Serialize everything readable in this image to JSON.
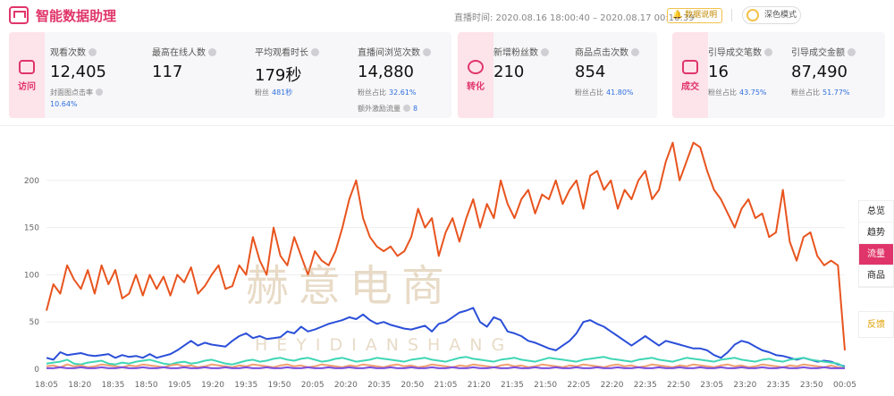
{
  "app": {
    "title": "智能数据助理"
  },
  "header": {
    "live_time": "直播时间: 2020.08.16 18:00:40 – 2020.08.17 00:10:39",
    "help_label": "数据说明",
    "dark_mode_label": "深色模式"
  },
  "panels": {
    "visit": {
      "category": "访问",
      "metrics": [
        {
          "label": "观看次数",
          "value": "12,405",
          "sub_label": "封面图点击率",
          "sub_value": "10.64%"
        },
        {
          "label": "最高在线人数",
          "value": "117"
        },
        {
          "label": "平均观看时长",
          "value": "179秒",
          "sub_label": "粉丝",
          "sub_value": "481秒"
        },
        {
          "label": "直播间浏览次数",
          "value": "14,880",
          "sub_label": "粉丝占比",
          "sub_value": "32.61%",
          "extra_label": "额外激励流量",
          "extra_value": "8"
        }
      ]
    },
    "convert": {
      "category": "转化",
      "metrics": [
        {
          "label": "新增粉丝数",
          "value": "210"
        },
        {
          "label": "商品点击次数",
          "value": "854",
          "sub_label": "粉丝占比",
          "sub_value": "41.80%"
        }
      ]
    },
    "deal": {
      "category": "成交",
      "metrics": [
        {
          "label": "引导成交笔数",
          "value": "16",
          "sub_label": "粉丝占比",
          "sub_value": "43.75%"
        },
        {
          "label": "引导成交金额",
          "value": "87,490",
          "sub_label": "粉丝占比",
          "sub_value": "51.77%"
        }
      ]
    }
  },
  "sidebar": {
    "items": [
      "总览",
      "趋势",
      "流量",
      "商品"
    ],
    "active": "流量",
    "feedback": "反馈"
  },
  "watermark": {
    "text": "赫意电商",
    "sub": "HEYIDIANSHANG"
  },
  "colors": {
    "accent": "#e0356a",
    "orange": "#e8541e",
    "blue": "#2b4fd8",
    "teal": "#3fd6b5",
    "purple": "#7b4fe0",
    "peach": "#f0a070"
  },
  "chart_data": {
    "type": "line",
    "x_ticks": [
      "18:05",
      "18:20",
      "18:35",
      "18:50",
      "19:05",
      "19:20",
      "19:35",
      "19:50",
      "20:05",
      "20:20",
      "20:35",
      "20:50",
      "21:05",
      "21:20",
      "21:35",
      "21:50",
      "22:05",
      "22:20",
      "22:35",
      "22:50",
      "23:05",
      "23:20",
      "23:35",
      "23:50",
      "00:05"
    ],
    "y_ticks": [
      0,
      50,
      100,
      150,
      200
    ],
    "ylim": [
      0,
      250
    ],
    "grid": true,
    "series": [
      {
        "color": "#e8541e",
        "values": [
          62,
          90,
          80,
          110,
          95,
          85,
          105,
          80,
          110,
          90,
          105,
          75,
          80,
          100,
          78,
          100,
          85,
          98,
          78,
          100,
          92,
          108,
          80,
          88,
          100,
          110,
          85,
          88,
          110,
          100,
          140,
          115,
          100,
          150,
          120,
          110,
          140,
          120,
          100,
          125,
          115,
          110,
          125,
          150,
          180,
          200,
          160,
          140,
          130,
          125,
          130,
          120,
          125,
          140,
          170,
          150,
          160,
          120,
          145,
          160,
          135,
          160,
          180,
          150,
          175,
          160,
          200,
          175,
          160,
          180,
          190,
          165,
          185,
          180,
          200,
          175,
          190,
          200,
          170,
          205,
          210,
          190,
          200,
          170,
          190,
          180,
          200,
          210,
          180,
          190,
          220,
          240,
          200,
          220,
          240,
          235,
          210,
          190,
          180,
          165,
          150,
          170,
          180,
          160,
          165,
          140,
          145,
          190,
          135,
          115,
          140,
          145,
          120,
          110,
          115,
          110,
          20
        ]
      },
      {
        "color": "#2b4fd8",
        "values": [
          12,
          10,
          18,
          15,
          16,
          17,
          15,
          14,
          15,
          16,
          12,
          15,
          13,
          14,
          12,
          16,
          12,
          14,
          16,
          20,
          25,
          30,
          25,
          28,
          26,
          25,
          24,
          30,
          35,
          38,
          33,
          35,
          32,
          33,
          34,
          40,
          38,
          45,
          40,
          42,
          45,
          48,
          50,
          52,
          55,
          53,
          58,
          52,
          48,
          50,
          47,
          45,
          43,
          42,
          44,
          46,
          40,
          48,
          50,
          55,
          60,
          62,
          65,
          50,
          45,
          55,
          52,
          40,
          38,
          35,
          30,
          28,
          25,
          22,
          20,
          25,
          30,
          38,
          50,
          52,
          48,
          45,
          40,
          35,
          30,
          25,
          30,
          35,
          30,
          25,
          30,
          28,
          26,
          24,
          22,
          22,
          20,
          15,
          12,
          18,
          26,
          30,
          28,
          24,
          20,
          18,
          15,
          14,
          12,
          10,
          12,
          10,
          8,
          9,
          8,
          5,
          3
        ]
      },
      {
        "color": "#3fd6b5",
        "values": [
          6,
          7,
          8,
          10,
          6,
          5,
          7,
          8,
          9,
          6,
          5,
          7,
          6,
          8,
          9,
          10,
          8,
          6,
          5,
          7,
          8,
          6,
          7,
          9,
          10,
          8,
          6,
          5,
          7,
          9,
          10,
          8,
          9,
          11,
          12,
          10,
          9,
          11,
          12,
          10,
          8,
          9,
          11,
          12,
          10,
          8,
          9,
          10,
          12,
          11,
          10,
          9,
          8,
          10,
          11,
          12,
          10,
          9,
          8,
          10,
          12,
          13,
          11,
          10,
          9,
          8,
          10,
          11,
          12,
          10,
          9,
          8,
          10,
          12,
          11,
          10,
          9,
          8,
          10,
          11,
          12,
          13,
          11,
          10,
          9,
          8,
          10,
          11,
          12,
          10,
          9,
          8,
          10,
          12,
          11,
          10,
          9,
          8,
          10,
          11,
          12,
          10,
          9,
          8,
          10,
          11,
          9,
          8,
          10,
          11,
          12,
          10,
          9,
          8,
          7,
          6,
          2
        ]
      },
      {
        "color": "#f0a070",
        "values": [
          3,
          4,
          2,
          5,
          3,
          4,
          2,
          3,
          5,
          4,
          3,
          2,
          4,
          3,
          5,
          4,
          3,
          2,
          4,
          5,
          3,
          4,
          2,
          3,
          5,
          4,
          3,
          2,
          4,
          3,
          5,
          4,
          3,
          2,
          4,
          5,
          3,
          4,
          2,
          3,
          5,
          4,
          3,
          2,
          4,
          3,
          5,
          4,
          3,
          2,
          4,
          5,
          3,
          4,
          2,
          3,
          5,
          4,
          3,
          2,
          4,
          3,
          5,
          4,
          3,
          2,
          4,
          5,
          3,
          4,
          2,
          3,
          5,
          4,
          3,
          2,
          4,
          3,
          5,
          4,
          3,
          2,
          4,
          5,
          3,
          4,
          2,
          3,
          5,
          4,
          3,
          2,
          4,
          3,
          5,
          4,
          3,
          2,
          4,
          5,
          3,
          4,
          2,
          3,
          5,
          4,
          3,
          2,
          4,
          3,
          5,
          4,
          3,
          2,
          4,
          2,
          1
        ]
      },
      {
        "color": "#7b4fe0",
        "values": [
          1,
          1,
          2,
          1,
          1,
          2,
          1,
          1,
          2,
          1,
          1,
          2,
          1,
          1,
          2,
          1,
          1,
          2,
          1,
          1,
          2,
          1,
          1,
          2,
          1,
          1,
          2,
          1,
          1,
          2,
          1,
          1,
          2,
          1,
          1,
          2,
          1,
          1,
          2,
          1,
          1,
          2,
          1,
          1,
          2,
          1,
          1,
          2,
          1,
          1,
          2,
          1,
          1,
          2,
          1,
          1,
          2,
          1,
          1,
          2,
          1,
          1,
          2,
          1,
          1,
          2,
          1,
          1,
          2,
          1,
          1,
          2,
          1,
          1,
          2,
          1,
          1,
          2,
          1,
          1,
          2,
          1,
          1,
          2,
          1,
          1,
          2,
          1,
          1,
          2,
          1,
          1,
          2,
          1,
          1,
          2,
          1,
          1,
          2,
          1,
          1,
          2,
          1,
          1,
          2,
          1,
          1,
          2,
          1,
          1,
          2,
          1,
          1,
          2,
          1,
          1,
          1
        ]
      }
    ]
  }
}
